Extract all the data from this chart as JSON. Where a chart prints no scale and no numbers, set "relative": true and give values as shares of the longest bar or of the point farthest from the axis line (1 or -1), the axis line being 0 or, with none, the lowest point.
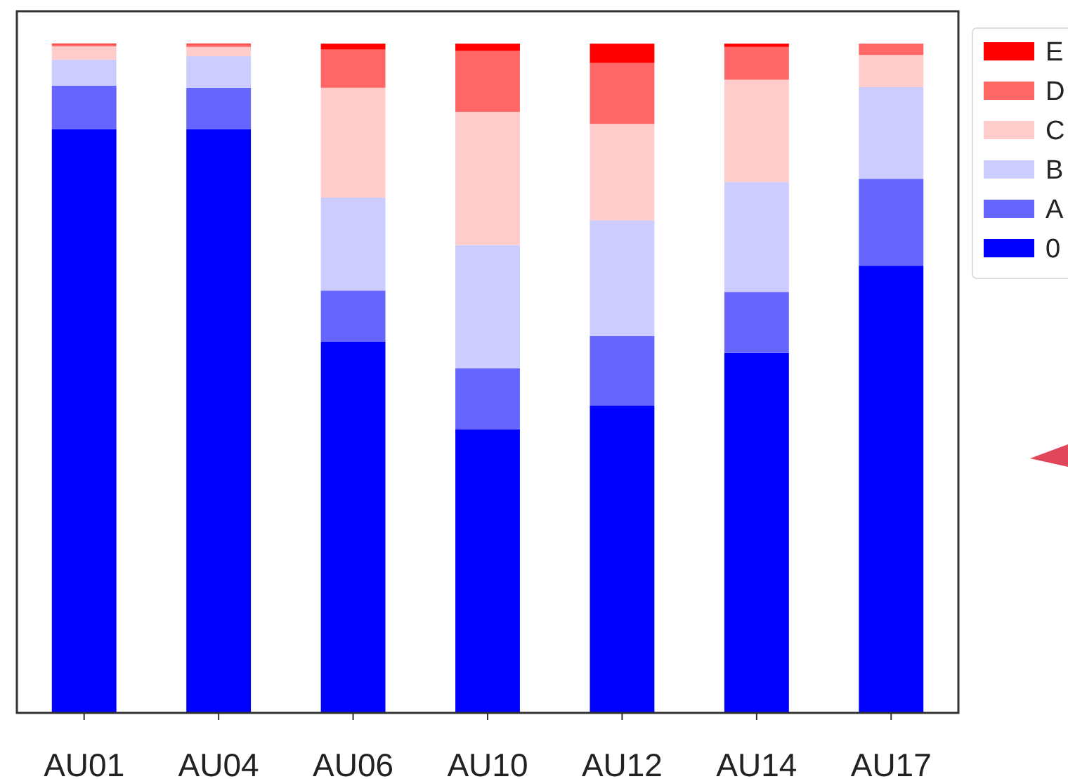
{
  "chart_data": {
    "type": "bar",
    "stacked": true,
    "relative": true,
    "categories": [
      "AU01",
      "AU04",
      "AU06",
      "AU10",
      "AU12",
      "AU14",
      "AU17"
    ],
    "series": [
      {
        "name": "0",
        "color": "#0000ff",
        "values": [
          0.872,
          0.872,
          0.555,
          0.424,
          0.459,
          0.538,
          0.668
        ]
      },
      {
        "name": "A",
        "color": "#6666ff",
        "values": [
          0.065,
          0.062,
          0.076,
          0.091,
          0.104,
          0.091,
          0.13
        ]
      },
      {
        "name": "B",
        "color": "#ccccff",
        "values": [
          0.039,
          0.047,
          0.139,
          0.184,
          0.173,
          0.164,
          0.137
        ]
      },
      {
        "name": "C",
        "color": "#ffcccc",
        "values": [
          0.02,
          0.014,
          0.164,
          0.199,
          0.144,
          0.153,
          0.048
        ]
      },
      {
        "name": "D",
        "color": "#ff6666",
        "values": [
          0.003,
          0.004,
          0.057,
          0.091,
          0.091,
          0.049,
          0.017
        ]
      },
      {
        "name": "E",
        "color": "#ff0000",
        "values": [
          0.001,
          0.001,
          0.009,
          0.011,
          0.029,
          0.005,
          0
        ]
      }
    ],
    "legend": "right"
  }
}
